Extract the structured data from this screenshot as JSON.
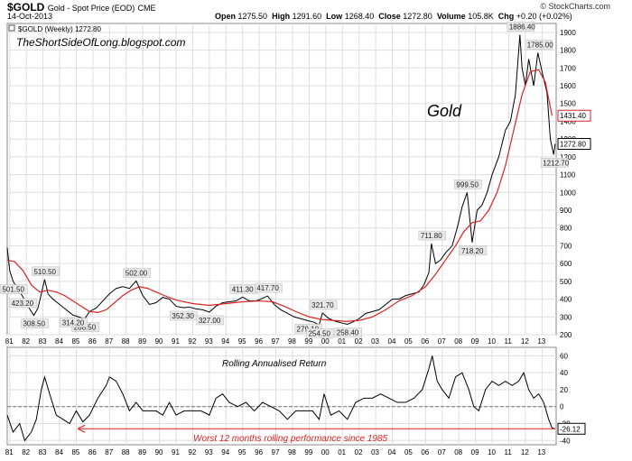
{
  "header": {
    "symbol": "$GOLD",
    "description": "Gold - Spot Price (EOD)",
    "exchange": "CME",
    "date": "14-Oct-2013",
    "open_label": "Open",
    "open": "1275.50",
    "high_label": "High",
    "high": "1291.60",
    "low_label": "Low",
    "low": "1268.40",
    "close_label": "Close",
    "close": "1272.80",
    "volume_label": "Volume",
    "volume": "105.8K",
    "chg_label": "Chg",
    "chg": "+0.20 (+0.02%)",
    "brand": "© StockCharts.com"
  },
  "colors": {
    "price": "#000000",
    "moving_average": "#dd2222",
    "annotation": "#dd2222",
    "grid": "#dddddd",
    "label_box": "#e8e8e8"
  },
  "chart_data": [
    {
      "type": "line",
      "panel": "price",
      "legend": "$GOLD (Weekly) 1272.80",
      "watermark": "TheShortSideOfLong.blogspot.com",
      "title": "Gold",
      "x_tick_labels": [
        "81",
        "82",
        "83",
        "84",
        "85",
        "86",
        "87",
        "88",
        "89",
        "90",
        "91",
        "92",
        "93",
        "94",
        "95",
        "96",
        "97",
        "98",
        "99",
        "00",
        "01",
        "02",
        "03",
        "04",
        "05",
        "06",
        "07",
        "08",
        "09",
        "10",
        "11",
        "12",
        "13"
      ],
      "y_ticks": [
        200,
        300,
        400,
        500,
        600,
        700,
        800,
        900,
        1000,
        1100,
        1200,
        1300,
        1400,
        1500,
        1600,
        1700,
        1800,
        1900
      ],
      "ylim": [
        200,
        1950
      ],
      "xlim": [
        1980.85,
        2013.85
      ],
      "series": [
        {
          "name": "$GOLD weekly close",
          "x": [
            1980.85,
            1981.0,
            1981.2,
            1981.45,
            1981.75,
            1982.1,
            1982.45,
            1982.7,
            1982.9,
            1983.1,
            1983.3,
            1983.6,
            1984.0,
            1984.4,
            1984.8,
            1985.15,
            1985.5,
            1985.8,
            1986.2,
            1986.6,
            1987.0,
            1987.4,
            1987.8,
            1988.2,
            1988.6,
            1989.0,
            1989.4,
            1989.8,
            1990.2,
            1990.6,
            1991.0,
            1991.4,
            1991.8,
            1992.2,
            1992.6,
            1993.0,
            1993.4,
            1993.8,
            1994.2,
            1994.6,
            1995.0,
            1995.4,
            1995.8,
            1996.1,
            1996.5,
            1996.9,
            1997.3,
            1997.7,
            1998.1,
            1998.5,
            1998.9,
            1999.3,
            1999.6,
            1999.8,
            2000.2,
            2000.6,
            2001.0,
            2001.3,
            2001.6,
            2002.0,
            2002.4,
            2002.8,
            2003.2,
            2003.6,
            2004.0,
            2004.4,
            2004.8,
            2005.2,
            2005.6,
            2005.9,
            2006.2,
            2006.35,
            2006.6,
            2006.9,
            2007.2,
            2007.6,
            2007.9,
            2008.2,
            2008.5,
            2008.8,
            2009.1,
            2009.4,
            2009.7,
            2010.0,
            2010.4,
            2010.8,
            2011.1,
            2011.4,
            2011.67,
            2011.8,
            2012.0,
            2012.2,
            2012.5,
            2012.75,
            2013.0,
            2013.3,
            2013.5,
            2013.7,
            2013.79
          ],
          "values": [
            690,
            560,
            501.5,
            460,
            420,
            360,
            308.5,
            350,
            430,
            510.5,
            430,
            400,
            370,
            340,
            310,
            300,
            288.5,
            330,
            350,
            390,
            430,
            460,
            470,
            460,
            502,
            420,
            370,
            380,
            410,
            400,
            360,
            352.3,
            355,
            345,
            340,
            327,
            360,
            380,
            385,
            390,
            411.3,
            390,
            390,
            400,
            417.7,
            370,
            340,
            320,
            300,
            290,
            279.1,
            270,
            254.5,
            321.7,
            290,
            275,
            265,
            258.4,
            270,
            290,
            320,
            330,
            340,
            370,
            400,
            400,
            420,
            430,
            440,
            480,
            550,
            711.8,
            600,
            620,
            660,
            700,
            800,
            920,
            999.5,
            718.2,
            900,
            930,
            1000,
            1100,
            1200,
            1350,
            1400,
            1550,
            1886.4,
            1700,
            1600,
            1750,
            1600,
            1785,
            1680,
            1560,
            1300,
            1212.7,
            1272.8
          ]
        },
        {
          "name": "Moving average",
          "x": [
            1980.85,
            1981.3,
            1981.8,
            1982.3,
            1982.8,
            1983.3,
            1983.8,
            1984.3,
            1984.8,
            1985.3,
            1985.8,
            1986.3,
            1986.8,
            1987.3,
            1987.8,
            1988.3,
            1988.8,
            1989.3,
            1989.8,
            1990.3,
            1991.0,
            1992.0,
            1993.0,
            1994.0,
            1995.0,
            1996.0,
            1996.8,
            1997.5,
            1998.2,
            1999.0,
            1999.8,
            2000.5,
            2001.2,
            2002.0,
            2002.8,
            2003.6,
            2004.4,
            2005.2,
            2006.0,
            2006.6,
            2007.2,
            2007.8,
            2008.3,
            2008.8,
            2009.3,
            2009.8,
            2010.3,
            2010.8,
            2011.3,
            2011.8,
            2012.3,
            2012.8,
            2013.2,
            2013.6
          ],
          "values": [
            620,
            610,
            560,
            480,
            440,
            450,
            440,
            420,
            390,
            360,
            330,
            325,
            340,
            380,
            420,
            450,
            470,
            460,
            440,
            420,
            395,
            375,
            365,
            375,
            385,
            390,
            385,
            360,
            330,
            300,
            285,
            280,
            275,
            280,
            300,
            340,
            390,
            420,
            470,
            540,
            620,
            700,
            780,
            830,
            840,
            900,
            1000,
            1150,
            1350,
            1550,
            1680,
            1690,
            1620,
            1431.4
          ]
        }
      ],
      "price_labels": [
        {
          "value": 501.5,
          "text": "501.50"
        },
        {
          "value": 308.5,
          "text": "308.50"
        },
        {
          "value": 510.5,
          "text": "510.50"
        },
        {
          "value": 288.5,
          "text": "288.50"
        },
        {
          "value": 502.0,
          "text": "502.00"
        },
        {
          "value": 352.3,
          "text": "352.30"
        },
        {
          "value": 423.2,
          "text": "423.20"
        },
        {
          "value": 327.0,
          "text": "327.00"
        },
        {
          "value": 411.3,
          "text": "411.30"
        },
        {
          "value": 417.7,
          "text": "417.70"
        },
        {
          "value": 279.1,
          "text": "279.10"
        },
        {
          "value": 314.2,
          "text": "314.20"
        },
        {
          "value": 254.5,
          "text": "254.50"
        },
        {
          "value": 321.7,
          "text": "321.70"
        },
        {
          "value": 258.4,
          "text": "258.40"
        },
        {
          "value": 711.8,
          "text": "711.80"
        },
        {
          "value": 999.5,
          "text": "999.50"
        },
        {
          "value": 718.2,
          "text": "718.20"
        },
        {
          "value": 1886.4,
          "text": "1886.40"
        },
        {
          "value": 1785.0,
          "text": "1785.00"
        },
        {
          "value": 1212.7,
          "text": "1212.70"
        }
      ],
      "axis_markers": [
        {
          "value": 1431.4,
          "text": "1431.40",
          "color": "#dd2222"
        },
        {
          "value": 1272.8,
          "text": "1272.80",
          "color": "#000000"
        }
      ]
    },
    {
      "type": "line",
      "panel": "indicator",
      "title": "Rolling Annualised Return",
      "annotation": "Worst 12 months rolling performance since 1985",
      "x_tick_labels": [
        "81",
        "82",
        "83",
        "84",
        "85",
        "86",
        "87",
        "88",
        "89",
        "90",
        "91",
        "92",
        "93",
        "94",
        "95",
        "96",
        "97",
        "98",
        "99",
        "00",
        "01",
        "02",
        "03",
        "04",
        "05",
        "06",
        "07",
        "08",
        "09",
        "10",
        "11",
        "12",
        "13"
      ],
      "y_ticks": [
        -40,
        -20,
        0,
        20,
        40,
        60
      ],
      "ylim": [
        -45,
        70
      ],
      "xlim": [
        1980.85,
        2013.85
      ],
      "reference_line": 0,
      "series": [
        {
          "name": "Rolling annualised return",
          "x": [
            1980.85,
            1981.2,
            1981.6,
            1981.9,
            1982.3,
            1982.6,
            1982.9,
            1983.1,
            1983.4,
            1983.8,
            1984.2,
            1984.6,
            1985.0,
            1985.4,
            1985.8,
            1986.3,
            1986.8,
            1987.0,
            1987.4,
            1987.8,
            1988.2,
            1988.6,
            1989.0,
            1989.4,
            1989.8,
            1990.2,
            1990.6,
            1991.0,
            1991.5,
            1992.0,
            1992.5,
            1993.0,
            1993.4,
            1993.8,
            1994.2,
            1994.7,
            1995.2,
            1995.7,
            1996.2,
            1996.7,
            1997.2,
            1997.7,
            1998.2,
            1998.7,
            1999.2,
            1999.6,
            1999.9,
            2000.3,
            2000.8,
            2001.3,
            2001.8,
            2002.3,
            2002.8,
            2003.3,
            2003.8,
            2004.3,
            2004.8,
            2005.3,
            2005.8,
            2006.2,
            2006.4,
            2006.7,
            2007.0,
            2007.4,
            2007.8,
            2008.2,
            2008.6,
            2008.9,
            2009.2,
            2009.6,
            2010.0,
            2010.4,
            2010.8,
            2011.2,
            2011.6,
            2011.9,
            2012.2,
            2012.5,
            2012.8,
            2013.1,
            2013.4,
            2013.6,
            2013.79
          ],
          "values": [
            -10,
            -30,
            -20,
            -40,
            -30,
            -15,
            20,
            35,
            15,
            -10,
            -15,
            -20,
            -5,
            -18,
            -10,
            10,
            25,
            35,
            30,
            15,
            -5,
            5,
            -5,
            -5,
            -5,
            -10,
            5,
            -10,
            -5,
            -5,
            -5,
            -10,
            10,
            15,
            5,
            0,
            5,
            -5,
            5,
            0,
            -5,
            -15,
            -5,
            -5,
            -5,
            -15,
            15,
            -10,
            -5,
            -15,
            5,
            10,
            10,
            15,
            10,
            5,
            5,
            10,
            20,
            45,
            60,
            30,
            20,
            10,
            35,
            40,
            20,
            0,
            -5,
            20,
            30,
            25,
            30,
            25,
            30,
            40,
            20,
            10,
            15,
            5,
            -15,
            -25,
            -26.12
          ]
        }
      ],
      "axis_markers": [
        {
          "value": -26.12,
          "text": "-26.12",
          "color": "#000000"
        }
      ]
    }
  ]
}
